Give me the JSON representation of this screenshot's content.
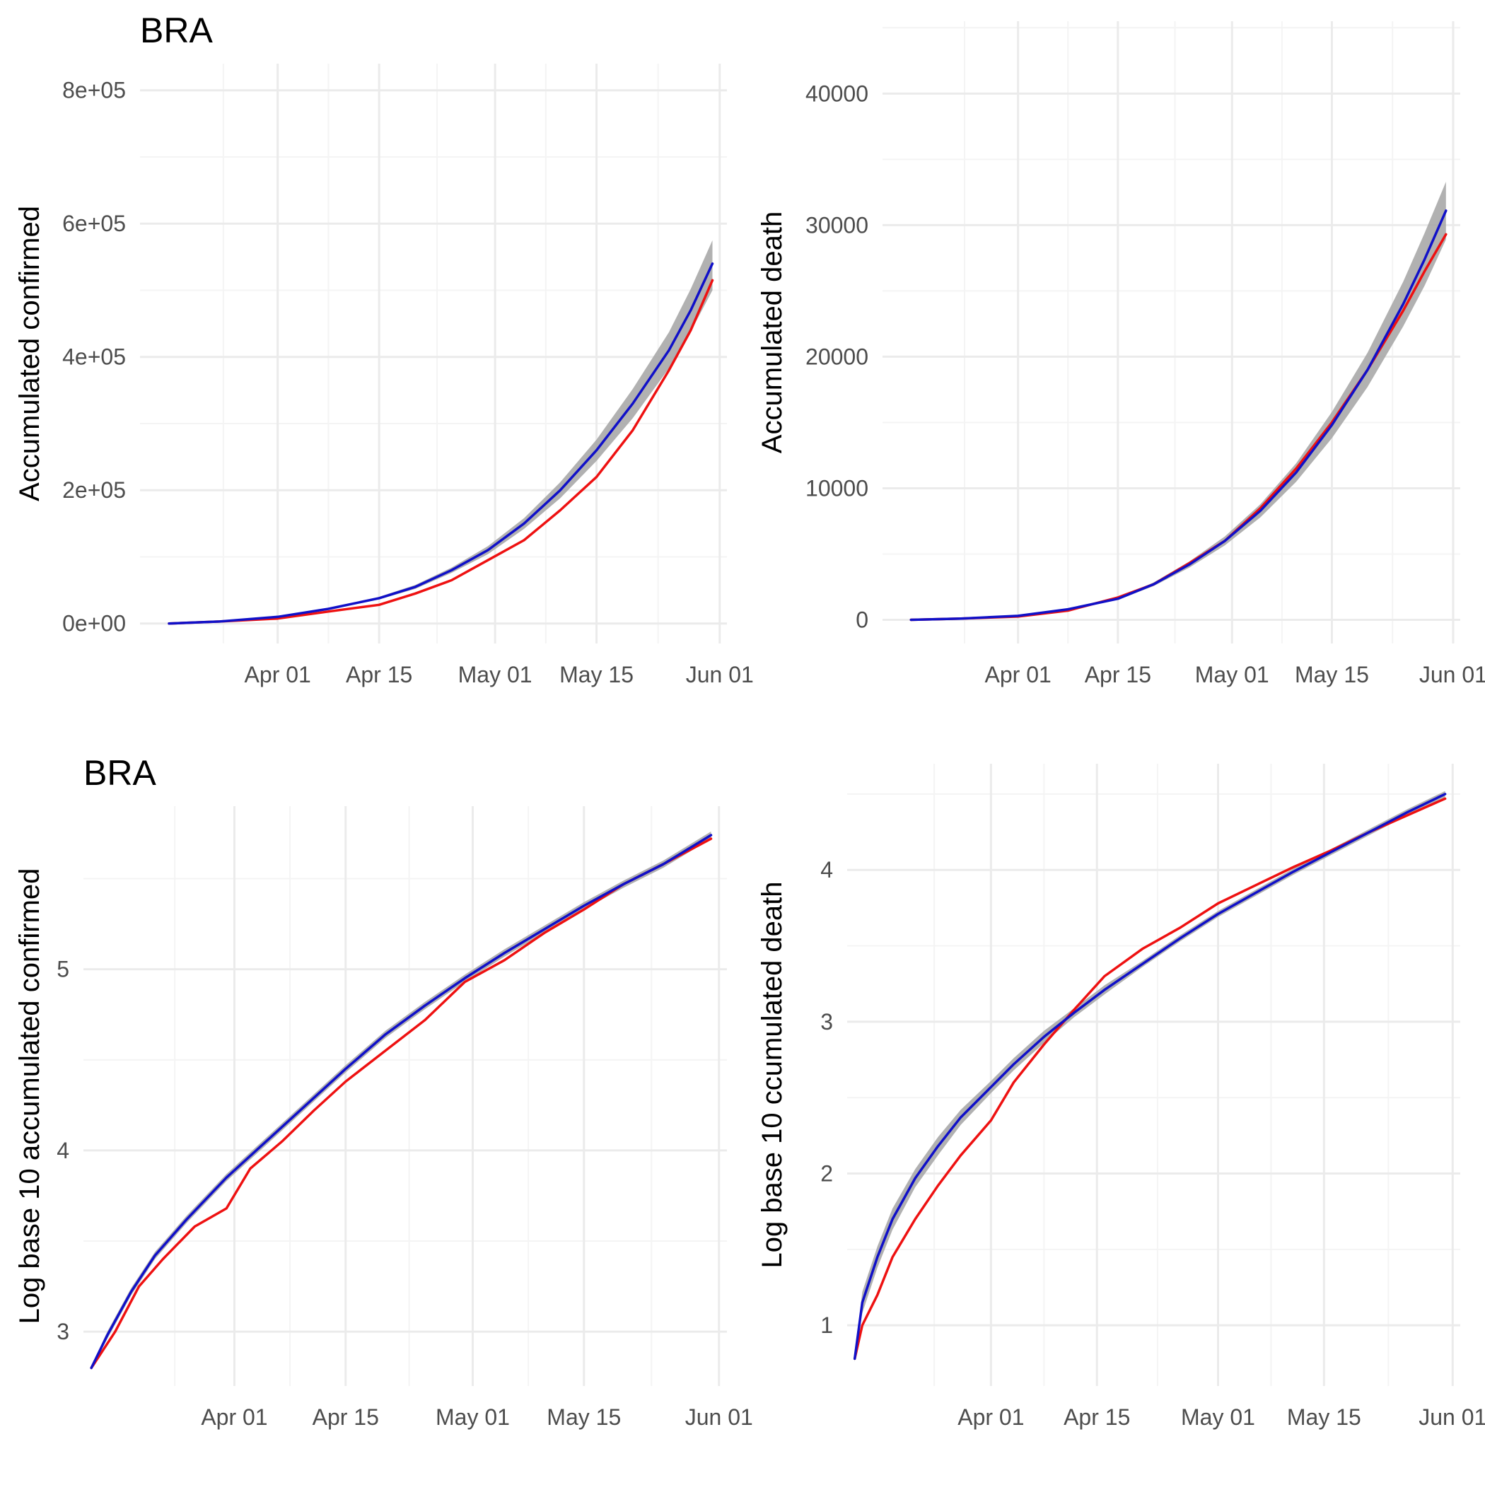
{
  "colors": {
    "observed": "#ee1111",
    "fitted": "#1010c8",
    "band": "#a8a8a8",
    "grid_major": "#ebebeb",
    "grid_minor": "#f4f4f4"
  },
  "x_ticks": [
    "Apr 01",
    "Apr 15",
    "May 01",
    "May 15",
    "Jun 01"
  ],
  "chart_data": [
    {
      "type": "line",
      "title": "BRA",
      "ylabel": "Accumulated confirmed",
      "xlim": [
        "2020-03-13",
        "2020-06-02"
      ],
      "ylim": [
        -30000,
        840000
      ],
      "y_ticks": [
        "0e+00",
        "2e+05",
        "4e+05",
        "6e+05",
        "8e+05"
      ],
      "series": [
        {
          "role": "observed",
          "x": [
            "2020-03-17",
            "2020-03-24",
            "2020-04-01",
            "2020-04-08",
            "2020-04-15",
            "2020-04-20",
            "2020-04-25",
            "2020-04-30",
            "2020-05-05",
            "2020-05-10",
            "2020-05-15",
            "2020-05-20",
            "2020-05-25",
            "2020-05-28",
            "2020-05-31"
          ],
          "y": [
            0,
            3000,
            7500,
            18000,
            28000,
            45000,
            65000,
            95000,
            125000,
            170000,
            220000,
            290000,
            380000,
            440000,
            515000
          ]
        },
        {
          "role": "fitted",
          "x": [
            "2020-03-17",
            "2020-03-24",
            "2020-04-01",
            "2020-04-08",
            "2020-04-15",
            "2020-04-20",
            "2020-04-25",
            "2020-04-30",
            "2020-05-05",
            "2020-05-10",
            "2020-05-15",
            "2020-05-20",
            "2020-05-25",
            "2020-05-28",
            "2020-05-31"
          ],
          "y": [
            0,
            3000,
            10000,
            22000,
            38000,
            55000,
            80000,
            110000,
            150000,
            200000,
            260000,
            330000,
            410000,
            470000,
            540000
          ],
          "lower": [
            0,
            2900,
            9600,
            21000,
            36000,
            52000,
            76000,
            104000,
            142000,
            188000,
            244000,
            308000,
            383000,
            438000,
            500000
          ],
          "upper": [
            0,
            3100,
            10400,
            23000,
            40000,
            58000,
            84000,
            116000,
            158000,
            212000,
            276000,
            352000,
            437000,
            502000,
            575000
          ]
        }
      ]
    },
    {
      "type": "line",
      "title": "",
      "ylabel": "Accumulated death",
      "xlim": [
        "2020-03-13",
        "2020-06-02"
      ],
      "ylim": [
        -1800,
        45500
      ],
      "y_ticks": [
        "0",
        "10000",
        "20000",
        "30000",
        "40000"
      ],
      "series": [
        {
          "role": "observed",
          "x": [
            "2020-03-17",
            "2020-03-24",
            "2020-04-01",
            "2020-04-08",
            "2020-04-15",
            "2020-04-20",
            "2020-04-25",
            "2020-04-30",
            "2020-05-05",
            "2020-05-10",
            "2020-05-15",
            "2020-05-20",
            "2020-05-25",
            "2020-05-28",
            "2020-05-31"
          ],
          "y": [
            0,
            100,
            250,
            700,
            1700,
            2700,
            4300,
            6000,
            8500,
            11500,
            15000,
            19000,
            23500,
            26500,
            29300
          ]
        },
        {
          "role": "fitted",
          "x": [
            "2020-03-17",
            "2020-03-24",
            "2020-04-01",
            "2020-04-08",
            "2020-04-15",
            "2020-04-20",
            "2020-04-25",
            "2020-04-30",
            "2020-05-05",
            "2020-05-10",
            "2020-05-15",
            "2020-05-20",
            "2020-05-25",
            "2020-05-28",
            "2020-05-31"
          ],
          "y": [
            0,
            100,
            300,
            800,
            1600,
            2700,
            4200,
            6000,
            8300,
            11200,
            14800,
            19000,
            24000,
            27400,
            31100
          ],
          "lower": [
            0,
            95,
            285,
            760,
            1520,
            2560,
            3970,
            5660,
            7800,
            10500,
            13800,
            17700,
            22300,
            25400,
            28900
          ],
          "upper": [
            0,
            105,
            315,
            840,
            1680,
            2840,
            4430,
            6340,
            8800,
            11900,
            15800,
            20300,
            25700,
            29400,
            33300
          ]
        }
      ]
    },
    {
      "type": "line",
      "title": "BRA",
      "ylabel": "Log base 10 accumulated confirmed",
      "xlim": [
        "2020-03-13",
        "2020-06-02"
      ],
      "ylim": [
        2.7,
        5.9
      ],
      "y_ticks": [
        "3",
        "4",
        "5"
      ],
      "series": [
        {
          "role": "observed",
          "x": [
            "2020-03-14",
            "2020-03-17",
            "2020-03-20",
            "2020-03-23",
            "2020-03-27",
            "2020-03-31",
            "2020-04-03",
            "2020-04-07",
            "2020-04-11",
            "2020-04-15",
            "2020-04-20",
            "2020-04-25",
            "2020-04-30",
            "2020-05-05",
            "2020-05-10",
            "2020-05-15",
            "2020-05-20",
            "2020-05-25",
            "2020-05-31"
          ],
          "y": [
            2.8,
            3.0,
            3.25,
            3.4,
            3.58,
            3.68,
            3.9,
            4.05,
            4.22,
            4.38,
            4.55,
            4.72,
            4.93,
            5.05,
            5.2,
            5.33,
            5.47,
            5.58,
            5.72
          ]
        },
        {
          "role": "fitted",
          "x": [
            "2020-03-14",
            "2020-03-16",
            "2020-03-19",
            "2020-03-22",
            "2020-03-26",
            "2020-03-31",
            "2020-04-05",
            "2020-04-10",
            "2020-04-15",
            "2020-04-20",
            "2020-04-25",
            "2020-04-30",
            "2020-05-05",
            "2020-05-10",
            "2020-05-15",
            "2020-05-20",
            "2020-05-25",
            "2020-05-31"
          ],
          "y": [
            2.8,
            2.98,
            3.22,
            3.42,
            3.62,
            3.85,
            4.05,
            4.25,
            4.45,
            4.64,
            4.8,
            4.95,
            5.09,
            5.22,
            5.35,
            5.47,
            5.58,
            5.74
          ],
          "lower": [
            2.79,
            2.96,
            3.2,
            3.4,
            3.6,
            3.83,
            4.03,
            4.23,
            4.43,
            4.62,
            4.78,
            4.93,
            5.07,
            5.2,
            5.33,
            5.45,
            5.56,
            5.72
          ],
          "upper": [
            2.81,
            3.0,
            3.24,
            3.44,
            3.64,
            3.87,
            4.07,
            4.27,
            4.47,
            4.66,
            4.82,
            4.97,
            5.11,
            5.24,
            5.37,
            5.49,
            5.6,
            5.76
          ]
        }
      ]
    },
    {
      "type": "line",
      "title": "",
      "ylabel": "Log base 10 ccumulated death",
      "xlim": [
        "2020-03-13",
        "2020-06-02"
      ],
      "ylim": [
        0.6,
        4.7
      ],
      "y_ticks": [
        "1",
        "2",
        "3",
        "4"
      ],
      "series": [
        {
          "role": "observed",
          "x": [
            "2020-03-14",
            "2020-03-15",
            "2020-03-17",
            "2020-03-19",
            "2020-03-22",
            "2020-03-25",
            "2020-03-28",
            "2020-04-01",
            "2020-04-04",
            "2020-04-08",
            "2020-04-12",
            "2020-04-16",
            "2020-04-21",
            "2020-04-26",
            "2020-05-01",
            "2020-05-06",
            "2020-05-11",
            "2020-05-16",
            "2020-05-21",
            "2020-05-26",
            "2020-05-31"
          ],
          "y": [
            0.78,
            1.0,
            1.2,
            1.45,
            1.7,
            1.92,
            2.12,
            2.35,
            2.6,
            2.85,
            3.08,
            3.3,
            3.48,
            3.62,
            3.78,
            3.9,
            4.02,
            4.13,
            4.25,
            4.36,
            4.47
          ]
        },
        {
          "role": "fitted",
          "x": [
            "2020-03-14",
            "2020-03-15",
            "2020-03-17",
            "2020-03-19",
            "2020-03-22",
            "2020-03-25",
            "2020-03-28",
            "2020-04-01",
            "2020-04-04",
            "2020-04-08",
            "2020-04-12",
            "2020-04-16",
            "2020-04-21",
            "2020-04-26",
            "2020-05-01",
            "2020-05-06",
            "2020-05-11",
            "2020-05-16",
            "2020-05-21",
            "2020-05-26",
            "2020-05-31"
          ],
          "y": [
            0.78,
            1.15,
            1.45,
            1.7,
            1.97,
            2.18,
            2.37,
            2.57,
            2.72,
            2.9,
            3.06,
            3.21,
            3.38,
            3.55,
            3.71,
            3.85,
            3.99,
            4.12,
            4.25,
            4.38,
            4.5
          ],
          "lower": [
            0.76,
            1.08,
            1.38,
            1.63,
            1.91,
            2.12,
            2.32,
            2.53,
            2.68,
            2.86,
            3.03,
            3.18,
            3.36,
            3.53,
            3.69,
            3.83,
            3.97,
            4.1,
            4.23,
            4.36,
            4.48
          ],
          "upper": [
            0.8,
            1.22,
            1.52,
            1.77,
            2.03,
            2.24,
            2.42,
            2.61,
            2.76,
            2.94,
            3.09,
            3.24,
            3.4,
            3.57,
            3.73,
            3.87,
            4.01,
            4.14,
            4.27,
            4.4,
            4.52
          ]
        }
      ]
    }
  ]
}
